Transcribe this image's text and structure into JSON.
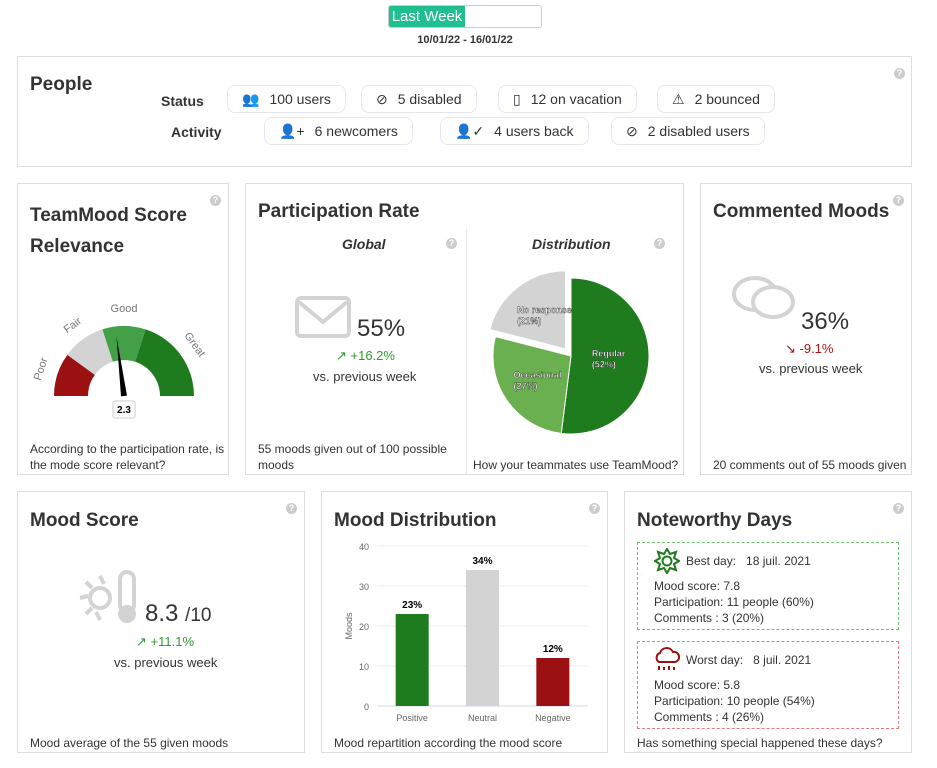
{
  "period": {
    "selected": "Last Week",
    "range": "10/01/22 - 16/01/22"
  },
  "people": {
    "title": "People",
    "status_label": "Status",
    "activity_label": "Activity",
    "status": [
      {
        "icon": "users-icon",
        "text": "100 users"
      },
      {
        "icon": "user-disabled-icon",
        "text": "5 disabled"
      },
      {
        "icon": "suitcase-icon",
        "text": "12 on vacation"
      },
      {
        "icon": "warning-icon",
        "text": "2 bounced"
      }
    ],
    "activity": [
      {
        "icon": "user-plus-icon",
        "text": "6 newcomers"
      },
      {
        "icon": "user-check-icon",
        "text": "4 users back"
      },
      {
        "icon": "user-disabled-icon",
        "text": "2 disabled users"
      }
    ]
  },
  "relevance": {
    "title": "TeamMood Score Relevance",
    "footer": "According to the participation rate, is the mode score relevant?"
  },
  "participation": {
    "title": "Participation Rate",
    "global_title": "Global",
    "distribution_title": "Distribution",
    "value": "55%",
    "delta": "+16.2%",
    "vs": "vs. previous week",
    "footer_global": "55 moods given out of 100 possible moods",
    "footer_distribution": "How your teammates use TeamMood?"
  },
  "commented": {
    "title": "Commented Moods",
    "value": "36%",
    "delta": "-9.1%",
    "vs": "vs. previous week",
    "footer": "20 comments out of 55 moods given"
  },
  "mood_score": {
    "title": "Mood Score",
    "value": "8.3",
    "max": "/10",
    "delta": "+11.1%",
    "vs": "vs. previous week",
    "footer": "Mood average of the 55 given moods"
  },
  "mood_distribution": {
    "title": "Mood Distribution",
    "footer": "Mood repartition according the mood score"
  },
  "noteworthy": {
    "title": "Noteworthy Days",
    "footer": "Has something special happened these days?",
    "best": {
      "label": "Best day:",
      "date": "18 juil. 2021",
      "score": "Mood score: 7.8",
      "participation": "Participation: 11 people (60%)",
      "comments": "Comments : 3 (20%)"
    },
    "worst": {
      "label": "Worst day:",
      "date": "8 juil. 2021",
      "score": "Mood score: 5.8",
      "participation": "Participation: 10 people (54%)",
      "comments": "Comments : 4 (26%)"
    }
  },
  "colors": {
    "accent": "#1fbf8f",
    "green": "#1e7b1e",
    "light_green": "#6aaf50",
    "grey": "#d3d3d3",
    "red": "#9b1111"
  },
  "chart_data": [
    {
      "type": "gauge",
      "value": 2.3,
      "value_label": "2.3",
      "min": 0,
      "max": 5,
      "bands": [
        {
          "name": "Poor",
          "from": 0,
          "to": 1,
          "color": "#9b1111"
        },
        {
          "name": "Fair",
          "from": 1,
          "to": 2,
          "color": "#d3d3d3"
        },
        {
          "name": "Good",
          "from": 2,
          "to": 3,
          "color": "#43a047"
        },
        {
          "name": "Great",
          "from": 3,
          "to": 5,
          "color": "#1e7b1e"
        }
      ]
    },
    {
      "type": "pie",
      "slices": [
        {
          "name": "Regular",
          "value": 52,
          "label": "Regular (52%)",
          "color": "#1e7b1e"
        },
        {
          "name": "Occasional",
          "value": 27,
          "label": "Occasional (27%)",
          "color": "#6aaf50"
        },
        {
          "name": "No response",
          "value": 21,
          "label": "No response (21%)",
          "color": "#d3d3d3",
          "exploded": true
        }
      ]
    },
    {
      "type": "bar",
      "categories": [
        "Positive",
        "Neutral",
        "Negative"
      ],
      "values": [
        23,
        34,
        12
      ],
      "labels": [
        "23%",
        "34%",
        "12%"
      ],
      "colors": [
        "#1e7b1e",
        "#d3d3d3",
        "#9b1111"
      ],
      "ylabel": "Moods",
      "ylim": [
        0,
        40
      ],
      "yticks": [
        0,
        10,
        20,
        30,
        40
      ]
    }
  ]
}
